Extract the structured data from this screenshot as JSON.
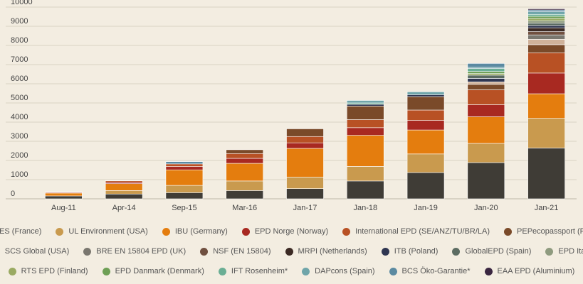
{
  "chart_data": {
    "type": "bar",
    "stacked": true,
    "categories": [
      "Aug-11",
      "Apr-14",
      "Sep-15",
      "Mar-16",
      "Jan-17",
      "Jan-18",
      "Jan-19",
      "Jan-20",
      "Jan-21"
    ],
    "ylim": [
      0,
      10000
    ],
    "yticks": [
      0,
      1000,
      2000,
      3000,
      4000,
      5000,
      6000,
      7000,
      8000,
      9000,
      10000
    ],
    "grid": true,
    "legend_position": "bottom",
    "series": [
      {
        "name": "FDES (France)",
        "color": "#3f3c36",
        "values": [
          150,
          250,
          320,
          430,
          530,
          930,
          1370,
          1890,
          2650
        ]
      },
      {
        "name": "UL Environment (USA)",
        "color": "#c99a4e",
        "values": [
          0,
          180,
          380,
          500,
          600,
          760,
          970,
          1000,
          1550
        ]
      },
      {
        "name": "IBU (Germany)",
        "color": "#e47d0e",
        "values": [
          150,
          360,
          810,
          920,
          1500,
          1620,
          1250,
          1390,
          1280
        ]
      },
      {
        "name": "EPD Norge (Norway)",
        "color": "#a82921",
        "values": [
          40,
          80,
          170,
          260,
          290,
          400,
          500,
          630,
          1080
        ]
      },
      {
        "name": "International EPD (SE/ANZ/TU/BR/LA)",
        "color": "#b85124",
        "values": [
          20,
          70,
          140,
          250,
          330,
          420,
          540,
          780,
          1060
        ]
      },
      {
        "name": "PEPecopassport (France)",
        "color": "#7a4a29",
        "values": [
          0,
          0,
          0,
          200,
          400,
          710,
          700,
          280,
          420
        ]
      },
      {
        "name": "SCS Global (USA)",
        "color": "#cfb29a",
        "values": [
          0,
          0,
          0,
          0,
          0,
          0,
          0,
          130,
          280
        ]
      },
      {
        "name": "BRE EN 15804 EPD (UK)",
        "color": "#7a776f",
        "values": [
          0,
          0,
          0,
          0,
          0,
          0,
          0,
          0,
          230
        ]
      },
      {
        "name": "NSF (EN 15804)",
        "color": "#705040",
        "values": [
          0,
          0,
          0,
          0,
          0,
          0,
          0,
          0,
          170
        ]
      },
      {
        "name": "MRPI (Netherlands)",
        "color": "#3c2a24",
        "values": [
          0,
          0,
          0,
          0,
          0,
          0,
          0,
          0,
          200
        ]
      },
      {
        "name": "ITB (Poland)",
        "color": "#2f3651",
        "values": [
          0,
          0,
          0,
          0,
          0,
          90,
          100,
          180,
          120
        ]
      },
      {
        "name": "GlobalEPD (Spain)",
        "color": "#5c6c62",
        "values": [
          0,
          0,
          0,
          0,
          0,
          0,
          0,
          170,
          130
        ]
      },
      {
        "name": "EPD Italy",
        "color": "#8f9b7f",
        "values": [
          0,
          0,
          0,
          0,
          0,
          0,
          0,
          0,
          120
        ]
      },
      {
        "name": "RTS EPD (Finland)",
        "color": "#9aaa62",
        "values": [
          0,
          0,
          0,
          0,
          0,
          0,
          0,
          80,
          120
        ]
      },
      {
        "name": "EPD Danmark (Denmark)",
        "color": "#6e9f55",
        "values": [
          0,
          0,
          0,
          0,
          0,
          0,
          0,
          110,
          110
        ]
      },
      {
        "name": "IFT Rosenheim*",
        "color": "#6aae94",
        "values": [
          0,
          0,
          0,
          0,
          0,
          70,
          0,
          150,
          100
        ]
      },
      {
        "name": "DAPcons (Spain)",
        "color": "#6fa5a9",
        "values": [
          0,
          0,
          0,
          0,
          0,
          130,
          150,
          70,
          140
        ]
      },
      {
        "name": "BCS Öko-Garantie*",
        "color": "#5b8aa1",
        "values": [
          0,
          0,
          120,
          0,
          0,
          0,
          0,
          200,
          90
        ]
      },
      {
        "name": "EAA EPD (Aluminium)",
        "color": "#3a2640",
        "values": [
          0,
          20,
          0,
          0,
          0,
          0,
          0,
          0,
          60
        ]
      }
    ]
  }
}
